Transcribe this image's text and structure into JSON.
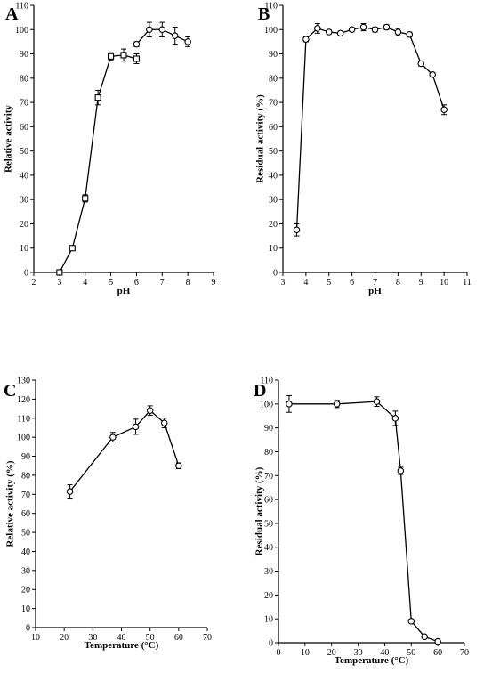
{
  "chart_data": [
    {
      "id": "A",
      "type": "line",
      "panel_label": "A",
      "xlabel": "pH",
      "ylabel": "Relative activity",
      "xlim": [
        2,
        9
      ],
      "ylim": [
        0,
        110
      ],
      "xticks": [
        2,
        3,
        4,
        5,
        6,
        7,
        8,
        9
      ],
      "yticks": [
        0,
        10,
        20,
        30,
        40,
        50,
        60,
        70,
        80,
        90,
        100,
        110
      ],
      "series": [
        {
          "marker": "square",
          "x": [
            3.0,
            3.5,
            4.0,
            4.5,
            5.0,
            5.5,
            6.0
          ],
          "y": [
            0,
            10,
            30.5,
            72,
            89,
            89.5,
            88
          ],
          "err": [
            0.5,
            0.8,
            1.5,
            3,
            1.5,
            2.5,
            2
          ]
        },
        {
          "marker": "circle",
          "x": [
            6.0,
            6.5,
            7.0,
            7.5,
            8.0
          ],
          "y": [
            94,
            100,
            100,
            97.5,
            95
          ],
          "err": [
            1,
            3,
            3,
            3.5,
            2
          ]
        }
      ]
    },
    {
      "id": "B",
      "type": "line",
      "panel_label": "B",
      "xlabel": "pH",
      "ylabel": "Residual activity (%)",
      "xlim": [
        3,
        11
      ],
      "ylim": [
        0,
        110
      ],
      "xticks": [
        3,
        4,
        5,
        6,
        7,
        8,
        9,
        10,
        11
      ],
      "yticks": [
        0,
        10,
        20,
        30,
        40,
        50,
        60,
        70,
        80,
        90,
        100,
        110
      ],
      "series": [
        {
          "marker": "circle",
          "x": [
            3.6,
            4.0,
            4.5,
            5.0,
            5.5,
            6.0,
            6.5,
            7.0,
            7.5,
            8.0,
            8.5,
            9.0,
            9.5,
            10.0
          ],
          "y": [
            17.5,
            96,
            100.5,
            99,
            98.5,
            100,
            101,
            100,
            101,
            99,
            98,
            86,
            81.5,
            67
          ],
          "err": [
            2.5,
            1,
            2,
            0.8,
            0.8,
            0.8,
            1.5,
            1,
            1,
            1.5,
            1,
            1,
            0.8,
            2
          ]
        }
      ]
    },
    {
      "id": "C",
      "type": "line",
      "panel_label": "C",
      "xlabel": "Temperature (°C)",
      "ylabel": "Relative activity (%)",
      "xlim": [
        10,
        70
      ],
      "ylim": [
        0,
        130
      ],
      "xticks": [
        10,
        20,
        30,
        40,
        50,
        60,
        70
      ],
      "yticks": [
        0,
        10,
        20,
        30,
        40,
        50,
        60,
        70,
        80,
        90,
        100,
        110,
        120,
        130
      ],
      "series": [
        {
          "marker": "circle",
          "x": [
            22,
            37,
            45,
            50,
            55,
            60
          ],
          "y": [
            71.5,
            100,
            105.5,
            114,
            107.5,
            85
          ],
          "err": [
            3.5,
            2.5,
            4,
            2.5,
            2.5,
            1.5
          ]
        }
      ]
    },
    {
      "id": "D",
      "type": "line",
      "panel_label": "D",
      "xlabel": "Temperature (°C)",
      "ylabel": "Residual activity (%)",
      "xlim": [
        0,
        70
      ],
      "ylim": [
        0,
        110
      ],
      "xticks": [
        0,
        10,
        20,
        30,
        40,
        50,
        60,
        70
      ],
      "yticks": [
        0,
        10,
        20,
        30,
        40,
        50,
        60,
        70,
        80,
        90,
        100,
        110
      ],
      "series": [
        {
          "marker": "circle",
          "x": [
            4,
            22,
            37,
            44,
            46,
            50,
            55,
            60
          ],
          "y": [
            100,
            100,
            101,
            94,
            72,
            9,
            2.5,
            0.5
          ],
          "err": [
            3.5,
            1.5,
            2,
            3,
            1.5,
            0.8,
            0.3,
            0.2
          ]
        }
      ]
    }
  ]
}
